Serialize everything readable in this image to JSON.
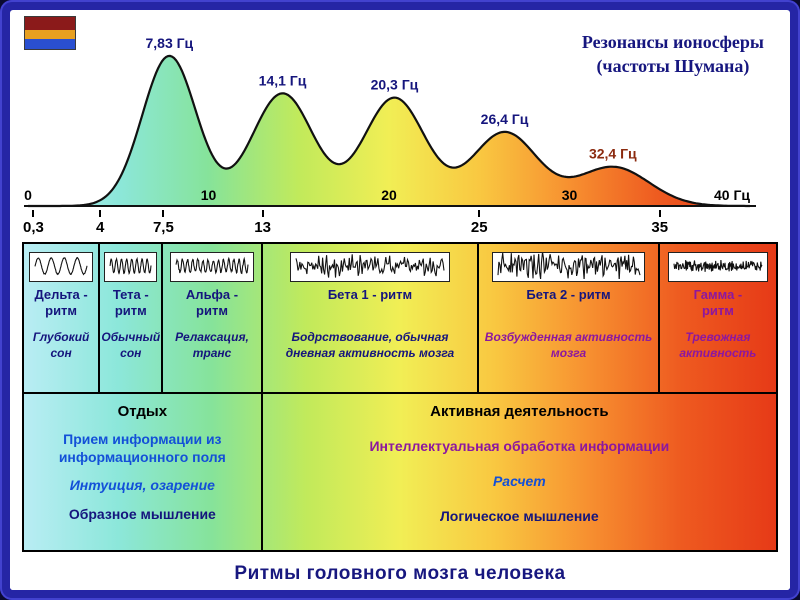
{
  "colors": {
    "frame": "#2525a5",
    "navy": "#15157d",
    "blue": "#1350d8",
    "purple": "#8c17a0",
    "dark_red": "#8b2a0e",
    "line": "#111111",
    "gradient": [
      "#b9edf4",
      "#8ce7da",
      "#86e39a",
      "#c1ea5b",
      "#f1ee55",
      "#f9c841",
      "#f79030",
      "#ee5a20",
      "#e63a17"
    ]
  },
  "logo": {
    "stripe_colors": [
      "#8b1a1a",
      "#e8a020",
      "#2a4fd0"
    ]
  },
  "header": {
    "title_line1": "Резонансы ионосферы",
    "title_line2": "(частоты Шумана)"
  },
  "chart_data": {
    "type": "line",
    "title": "Резонансы ионосферы (частоты Шумана)",
    "x_unit": "Гц",
    "xlim": [
      0,
      40
    ],
    "x_ticks": [
      {
        "value": 0,
        "label": "0"
      },
      {
        "value": 10,
        "label": "10"
      },
      {
        "value": 20,
        "label": "20"
      },
      {
        "value": 30,
        "label": "30"
      },
      {
        "value": 40,
        "label": "40 Гц"
      }
    ],
    "peaks": [
      {
        "freq_hz": 7.83,
        "label": "7,83 Гц",
        "rel_height": 1.0,
        "width_hz": 1.5,
        "label_color": "#15157d"
      },
      {
        "freq_hz": 14.1,
        "label": "14,1 Гц",
        "rel_height": 0.75,
        "width_hz": 1.7,
        "label_color": "#15157d"
      },
      {
        "freq_hz": 20.3,
        "label": "20,3 Гц",
        "rel_height": 0.72,
        "width_hz": 1.7,
        "label_color": "#15157d"
      },
      {
        "freq_hz": 26.4,
        "label": "26,4 Гц",
        "rel_height": 0.49,
        "width_hz": 1.8,
        "label_color": "#15157d"
      },
      {
        "freq_hz": 32.4,
        "label": "32,4 Гц",
        "rel_height": 0.26,
        "width_hz": 2.0,
        "label_color": "#8b2a0e"
      }
    ],
    "band_scale": [
      {
        "value": 0.3,
        "label": "0,3"
      },
      {
        "value": 4,
        "label": "4"
      },
      {
        "value": 7.5,
        "label": "7,5"
      },
      {
        "value": 13,
        "label": "13"
      },
      {
        "value": 25,
        "label": "25"
      },
      {
        "value": 35,
        "label": "35"
      }
    ]
  },
  "bands": [
    {
      "name": "Дельта -\nритм",
      "desc": "Глубокий сон",
      "wave": {
        "cycles": 4,
        "noise": 0.05,
        "amp": 0.8
      }
    },
    {
      "name": "Тета -\nритм",
      "desc": "Обычный сон",
      "wave": {
        "cycles": 8,
        "noise": 0.1,
        "amp": 0.7
      }
    },
    {
      "name": "Альфа -\nритм",
      "desc": "Релаксация, транс",
      "wave": {
        "cycles": 14,
        "noise": 0.22,
        "amp": 0.7
      }
    },
    {
      "name": "Бета 1 - ритм",
      "desc": "Бодрствование, обычная дневная активность мозга",
      "wave": {
        "cycles": 40,
        "noise": 0.85,
        "amp": 0.9
      }
    },
    {
      "name": "Бета 2 - ритм",
      "desc": "Возбужденная активность мозга",
      "wave": {
        "cycles": 36,
        "noise": 1.0,
        "amp": 1.0
      }
    },
    {
      "name": "Гамма -\nритм",
      "desc": "Тревожная активность",
      "wave": {
        "cycles": 70,
        "noise": 0.95,
        "amp": 0.45
      }
    }
  ],
  "modes": {
    "left": {
      "title": "Отдых",
      "lines": [
        {
          "text": "Прием информации из информационного поля",
          "color": "#1350d8"
        },
        {
          "text": "Интуиция, озарение",
          "color": "#1350d8",
          "italic": true
        },
        {
          "text": "Образное мышление",
          "color": "#15157d"
        }
      ]
    },
    "right": {
      "title": "Активная деятельность",
      "lines": [
        {
          "text": "Интеллектуальная обработка информации",
          "color": "#8c17a0"
        },
        {
          "text": "Расчет",
          "color": "#1350d8",
          "italic": true
        },
        {
          "text": "Логическое мышление",
          "color": "#15157d"
        }
      ]
    }
  },
  "caption": "Ритмы головного мозга человека"
}
